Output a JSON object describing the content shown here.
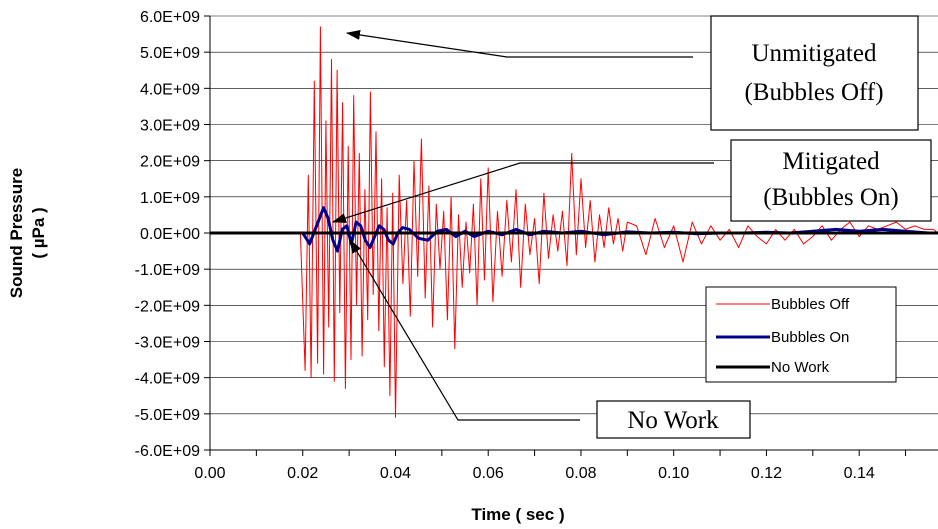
{
  "chart_data": {
    "type": "line",
    "title": "",
    "xlabel": "Time ( sec )",
    "ylabel_lines": [
      "Sound Pressure",
      "( µPa )"
    ],
    "xlim": [
      0,
      0.157
    ],
    "ylim": [
      -6000000000,
      6000000000
    ],
    "x_ticks": [
      0.0,
      0.02,
      0.04,
      0.06,
      0.08,
      0.1,
      0.12,
      0.14
    ],
    "x_tick_labels": [
      "0.00",
      "0.02",
      "0.04",
      "0.06",
      "0.08",
      "0.10",
      "0.12",
      "0.14"
    ],
    "y_ticks": [
      6000000000.0,
      5000000000.0,
      4000000000.0,
      3000000000.0,
      2000000000.0,
      1000000000.0,
      0,
      -1000000000.0,
      -2000000000.0,
      -3000000000.0,
      -4000000000.0,
      -5000000000.0,
      -6000000000.0
    ],
    "y_tick_labels": [
      "6.0E+09",
      "5.0E+09",
      "4.0E+09",
      "3.0E+09",
      "2.0E+09",
      "1.0E+09",
      "0.0E+00",
      "-1.0E+09",
      "-2.0E+09",
      "-3.0E+09",
      "-4.0E+09",
      "-5.0E+09",
      "-6.0E+09"
    ],
    "grid": "horizontal",
    "legend_position": "right",
    "series": [
      {
        "name": "Bubbles Off",
        "color": "#ff0000",
        "width": 1,
        "x": [
          0.0,
          0.0195,
          0.0205,
          0.0212,
          0.0218,
          0.0225,
          0.0232,
          0.0238,
          0.0245,
          0.025,
          0.0256,
          0.0262,
          0.0268,
          0.0274,
          0.028,
          0.0286,
          0.0292,
          0.0298,
          0.0304,
          0.031,
          0.0316,
          0.0322,
          0.0328,
          0.0334,
          0.034,
          0.0346,
          0.0352,
          0.0358,
          0.0364,
          0.037,
          0.0376,
          0.0382,
          0.0388,
          0.0394,
          0.04,
          0.0408,
          0.0416,
          0.0424,
          0.0432,
          0.044,
          0.0448,
          0.0456,
          0.0464,
          0.0472,
          0.048,
          0.0488,
          0.0496,
          0.0504,
          0.0512,
          0.052,
          0.0528,
          0.0536,
          0.0544,
          0.0552,
          0.056,
          0.0568,
          0.0576,
          0.0584,
          0.0592,
          0.06,
          0.061,
          0.062,
          0.063,
          0.064,
          0.065,
          0.066,
          0.067,
          0.068,
          0.069,
          0.07,
          0.071,
          0.072,
          0.073,
          0.074,
          0.075,
          0.076,
          0.077,
          0.078,
          0.079,
          0.08,
          0.081,
          0.082,
          0.083,
          0.084,
          0.085,
          0.086,
          0.087,
          0.088,
          0.089,
          0.09,
          0.092,
          0.094,
          0.096,
          0.098,
          0.1,
          0.102,
          0.104,
          0.106,
          0.108,
          0.11,
          0.112,
          0.114,
          0.116,
          0.118,
          0.12,
          0.122,
          0.124,
          0.126,
          0.128,
          0.13,
          0.132,
          0.134,
          0.136,
          0.138,
          0.14,
          0.142,
          0.144,
          0.146,
          0.148,
          0.15,
          0.152,
          0.154,
          0.156,
          0.157
        ],
        "y": [
          0,
          0,
          -3800000000.0,
          1600000000.0,
          -4000000000.0,
          4200000000.0,
          -3600000000.0,
          5700000000.0,
          -3900000000.0,
          3100000000.0,
          -2600000000.0,
          4800000000.0,
          -4100000000.0,
          4500000000.0,
          -2200000000.0,
          3600000000.0,
          -4300000000.0,
          2400000000.0,
          -3500000000.0,
          3800000000.0,
          -2000000000.0,
          2200000000.0,
          -3400000000.0,
          1200000000.0,
          -2400000000.0,
          3900000000.0,
          -1700000000.0,
          2800000000.0,
          -2700000000.0,
          1500000000.0,
          -3700000000.0,
          700000000.0,
          -4500000000.0,
          1100000000.0,
          -5100000000.0,
          1600000000.0,
          -1400000000.0,
          900000000.0,
          -2300000000.0,
          2000000000.0,
          -1200000000.0,
          2600000000.0,
          -1800000000.0,
          1300000000.0,
          -2600000000.0,
          800000000.0,
          -1000000000.0,
          600000000.0,
          -2400000000.0,
          1000000000.0,
          -3200000000.0,
          500000000.0,
          -1500000000.0,
          300000000.0,
          -1100000000.0,
          800000000.0,
          -2000000000.0,
          1500000000.0,
          -1300000000.0,
          1800000000.0,
          -1900000000.0,
          600000000.0,
          -1200000000.0,
          900000000.0,
          -800000000.0,
          1200000000.0,
          -1500000000.0,
          800000000.0,
          -600000000.0,
          400000000.0,
          -1400000000.0,
          1100000000.0,
          -700000000.0,
          500000000.0,
          -500000000.0,
          600000000.0,
          -900000000.0,
          2200000000.0,
          -600000000.0,
          1500000000.0,
          -400000000.0,
          900000000.0,
          -800000000.0,
          500000000.0,
          -400000000.0,
          700000000.0,
          -300000000.0,
          400000000.0,
          -500000000.0,
          300000000.0,
          200000000.0,
          -600000000.0,
          400000000.0,
          -400000000.0,
          200000000.0,
          -800000000.0,
          300000000.0,
          -300000000.0,
          200000000.0,
          -200000000.0,
          100000000.0,
          -400000000.0,
          200000000.0,
          -100000000.0,
          -300000000.0,
          100000000.0,
          -200000000.0,
          100000000.0,
          -300000000.0,
          -100000000.0,
          200000000.0,
          -200000000.0,
          100000000.0,
          300000000.0,
          -100000000.0,
          200000000.0,
          100000000.0,
          200000000.0,
          300000000.0,
          100000000.0,
          200000000.0,
          100000000.0,
          100000000.0,
          0.0
        ]
      },
      {
        "name": "Bubbles On",
        "color": "#00008b",
        "width": 3,
        "x": [
          0.0,
          0.02,
          0.0215,
          0.023,
          0.0245,
          0.0255,
          0.0265,
          0.0275,
          0.0285,
          0.0295,
          0.0305,
          0.0315,
          0.0325,
          0.0335,
          0.0345,
          0.0355,
          0.0365,
          0.0375,
          0.0385,
          0.0395,
          0.0405,
          0.0415,
          0.043,
          0.045,
          0.047,
          0.049,
          0.051,
          0.053,
          0.055,
          0.057,
          0.06,
          0.063,
          0.066,
          0.069,
          0.072,
          0.076,
          0.08,
          0.085,
          0.09,
          0.095,
          0.1,
          0.105,
          0.11,
          0.115,
          0.12,
          0.125,
          0.13,
          0.135,
          0.14,
          0.145,
          0.15,
          0.155,
          0.157
        ],
        "y": [
          0,
          0,
          -300000000.0,
          200000000.0,
          700000000.0,
          400000000.0,
          -200000000.0,
          -500000000.0,
          100000000.0,
          200000000.0,
          -300000000.0,
          300000000.0,
          200000000.0,
          -200000000.0,
          -400000000.0,
          -100000000.0,
          200000000.0,
          100000000.0,
          -200000000.0,
          -300000000.0,
          0.0,
          150000000.0,
          100000000.0,
          -150000000.0,
          -200000000.0,
          50000000.0,
          100000000.0,
          -100000000.0,
          50000000.0,
          -100000000.0,
          50000000.0,
          -50000000.0,
          100000000.0,
          -50000000.0,
          50000000.0,
          0.0,
          50000000.0,
          -50000000.0,
          30000000.0,
          0.0,
          20000000.0,
          -20000000.0,
          0.0,
          0.0,
          20000000.0,
          0.0,
          50000000.0,
          100000000.0,
          50000000.0,
          100000000.0,
          50000000.0,
          0.0,
          0.0
        ]
      },
      {
        "name": "No Work",
        "color": "#000000",
        "width": 3,
        "x": [
          0.0,
          0.04,
          0.08,
          0.12,
          0.157
        ],
        "y": [
          0,
          0,
          0,
          0,
          0
        ]
      }
    ],
    "annotations": [
      {
        "name": "unmitigated",
        "lines": [
          "Unmitigated",
          "(Bubbles Off)"
        ]
      },
      {
        "name": "mitigated",
        "lines": [
          "Mitigated",
          "(Bubbles On)"
        ]
      },
      {
        "name": "no-work",
        "lines": [
          "No Work"
        ]
      }
    ]
  }
}
